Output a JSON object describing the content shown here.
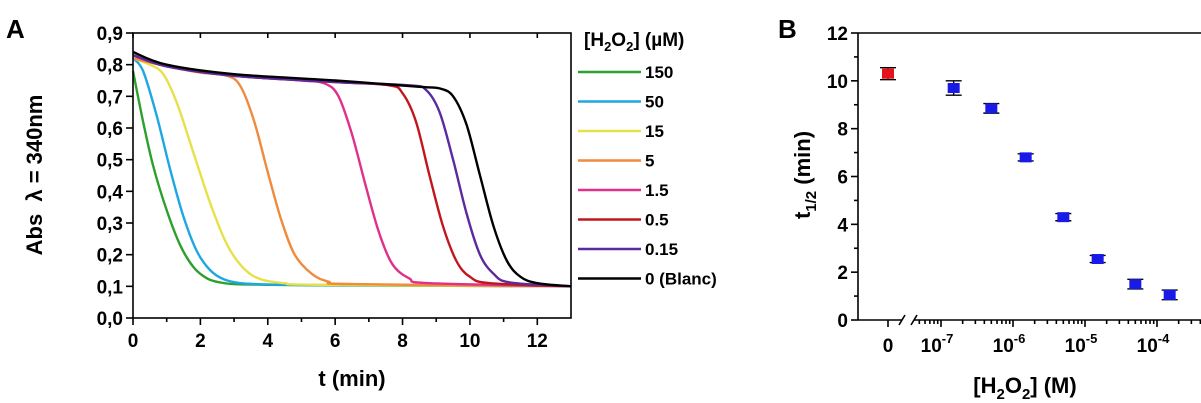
{
  "chart_data": [
    {
      "panel": "A",
      "type": "line",
      "xlabel": "t (min)",
      "ylabel_main": "Abs",
      "ylabel_sub": "λ = 340nm",
      "xlim": [
        0,
        13
      ],
      "ylim": [
        0.0,
        0.9
      ],
      "xticks": [
        "0",
        "2",
        "4",
        "6",
        "8",
        "10",
        "12"
      ],
      "yticks": [
        "0,0",
        "0,1",
        "0,2",
        "0,3",
        "0,4",
        "0,5",
        "0,6",
        "0,7",
        "0,8",
        "0,9"
      ],
      "legend_title_prefix": "[H",
      "legend_title_sub1": "2",
      "legend_title_mid": "O",
      "legend_title_sub2": "2",
      "legend_title_suffix": "] (µM)",
      "grid": false,
      "series": [
        {
          "name": "150",
          "color": "#2ca02c",
          "x": [
            0,
            0.3,
            0.6,
            1.0,
            1.4,
            1.8,
            2.2,
            2.6,
            3.0,
            4.0,
            6.0,
            13.0
          ],
          "y": [
            0.78,
            0.62,
            0.48,
            0.34,
            0.23,
            0.16,
            0.125,
            0.112,
            0.107,
            0.105,
            0.103,
            0.1
          ]
        },
        {
          "name": "50",
          "color": "#1ea7e1",
          "x": [
            0,
            0.3,
            0.7,
            1.1,
            1.5,
            1.9,
            2.3,
            2.7,
            3.2,
            4.0,
            6.0,
            13.0
          ],
          "y": [
            0.82,
            0.78,
            0.64,
            0.47,
            0.32,
            0.21,
            0.15,
            0.122,
            0.11,
            0.106,
            0.104,
            0.1
          ]
        },
        {
          "name": "15",
          "color": "#e8e04a",
          "x": [
            0,
            0.5,
            0.9,
            1.3,
            1.8,
            2.3,
            2.8,
            3.3,
            3.8,
            4.5,
            5.5,
            13.0
          ],
          "y": [
            0.82,
            0.8,
            0.77,
            0.68,
            0.52,
            0.36,
            0.23,
            0.155,
            0.122,
            0.11,
            0.105,
            0.1
          ]
        },
        {
          "name": "5",
          "color": "#f08a3c",
          "x": [
            0,
            1.0,
            2.0,
            2.8,
            3.2,
            3.6,
            4.0,
            4.4,
            4.8,
            5.3,
            5.8,
            6.5,
            13.0
          ],
          "y": [
            0.82,
            0.795,
            0.775,
            0.765,
            0.73,
            0.62,
            0.46,
            0.31,
            0.2,
            0.14,
            0.115,
            0.107,
            0.1
          ]
        },
        {
          "name": "1.5",
          "color": "#e0308a",
          "x": [
            0,
            1.0,
            3.0,
            5.0,
            5.7,
            6.1,
            6.5,
            6.9,
            7.3,
            7.7,
            8.2,
            8.8,
            13.0
          ],
          "y": [
            0.83,
            0.795,
            0.765,
            0.75,
            0.74,
            0.7,
            0.58,
            0.42,
            0.27,
            0.17,
            0.125,
            0.11,
            0.1
          ]
        },
        {
          "name": "0.5",
          "color": "#c0171e",
          "x": [
            0,
            1.0,
            3.0,
            6.0,
            7.6,
            8.0,
            8.4,
            8.8,
            9.2,
            9.6,
            10.0,
            10.6,
            13.0
          ],
          "y": [
            0.83,
            0.795,
            0.765,
            0.745,
            0.735,
            0.71,
            0.62,
            0.45,
            0.29,
            0.18,
            0.13,
            0.11,
            0.1
          ]
        },
        {
          "name": "0.15",
          "color": "#5b2a9e",
          "x": [
            0,
            1.0,
            3.0,
            6.0,
            8.2,
            8.7,
            9.1,
            9.5,
            9.9,
            10.3,
            10.7,
            11.2,
            13.0
          ],
          "y": [
            0.83,
            0.795,
            0.765,
            0.745,
            0.735,
            0.72,
            0.65,
            0.5,
            0.33,
            0.2,
            0.14,
            0.112,
            0.1
          ]
        },
        {
          "name": "0 (Blanc)",
          "color": "#000000",
          "x": [
            0,
            1.0,
            3.0,
            6.0,
            8.5,
            9.1,
            9.5,
            9.9,
            10.3,
            10.7,
            11.1,
            11.5,
            12.0,
            13.0
          ],
          "y": [
            0.84,
            0.8,
            0.77,
            0.75,
            0.73,
            0.725,
            0.7,
            0.61,
            0.45,
            0.29,
            0.18,
            0.13,
            0.11,
            0.1
          ]
        }
      ]
    },
    {
      "panel": "B",
      "type": "scatter",
      "ylabel_main": "t",
      "ylabel_sub": "1/2",
      "ylabel_suffix": " (min)",
      "xlabel_prefix": "[H",
      "xlabel_sub1": "2",
      "xlabel_mid": "O",
      "xlabel_sub2": "2",
      "xlabel_suffix": "] (M)",
      "x_scale": "log with axis break",
      "ylim": [
        0,
        12
      ],
      "yticks": [
        "0",
        "2",
        "4",
        "6",
        "8",
        "10",
        "12"
      ],
      "xticks_zero": "0",
      "xticks_log": [
        {
          "base": "10",
          "exp": "-7",
          "value": 1e-07
        },
        {
          "base": "10",
          "exp": "-6",
          "value": 1e-06
        },
        {
          "base": "10",
          "exp": "-5",
          "value": 1e-05
        },
        {
          "base": "10",
          "exp": "-4",
          "value": 0.0001
        }
      ],
      "grid": false,
      "zero_point": {
        "x": 0,
        "y": 10.3,
        "err": 0.25,
        "color": "#e8101a"
      },
      "series": [
        {
          "color": "#1a1ae6",
          "x": [
            1.5e-07,
            5e-07,
            1.5e-06,
            5e-06,
            1.5e-05,
            5e-05,
            0.00015
          ],
          "y": [
            9.7,
            8.85,
            6.8,
            4.3,
            2.55,
            1.5,
            1.05
          ],
          "err": [
            0.3,
            0.2,
            0.15,
            0.15,
            0.15,
            0.2,
            0.2
          ]
        }
      ]
    }
  ]
}
